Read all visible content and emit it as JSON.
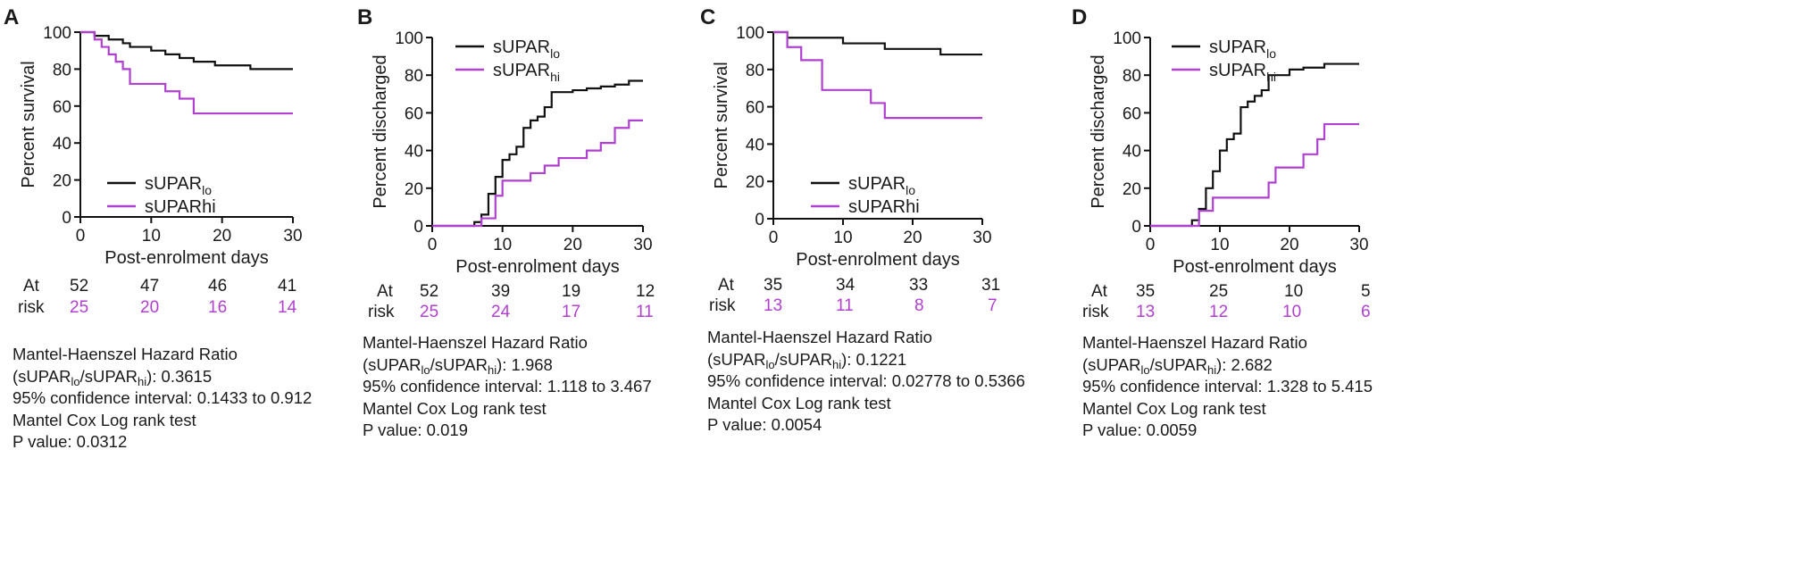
{
  "colors": {
    "lo": "#111111",
    "hi": "#b040cf"
  },
  "chart_data": [
    {
      "type": "line",
      "step": true,
      "panel": "A",
      "ylabel": "Percent survival",
      "xlabel": "Post-enrolment days",
      "xlim": [
        0,
        30
      ],
      "ylim": [
        0,
        100
      ],
      "xticks": [
        0,
        10,
        20,
        30
      ],
      "yticks": [
        0,
        20,
        40,
        60,
        80,
        100
      ],
      "legend": {
        "position": "bottom-center",
        "lo_base": "sUPAR",
        "lo_sub": "lo",
        "hi_base": "sUPARhi",
        "hi_sub": ""
      },
      "series": [
        {
          "name": "sUPARlo",
          "color_key": "lo",
          "x": [
            0,
            2,
            4,
            6,
            7,
            10,
            12,
            14,
            16,
            19,
            24,
            30
          ],
          "y": [
            100,
            98,
            96,
            94,
            92,
            90,
            88,
            86,
            84,
            82,
            80,
            80
          ]
        },
        {
          "name": "sUPARhi",
          "color_key": "hi",
          "x": [
            0,
            2,
            3,
            4,
            5,
            6,
            7,
            10,
            12,
            14,
            16,
            30
          ],
          "y": [
            100,
            96,
            92,
            88,
            84,
            80,
            72,
            72,
            68,
            64,
            56,
            56
          ]
        }
      ],
      "at_risk": {
        "label_line1": "At",
        "label_line2": "risk",
        "ticks": [
          0,
          10,
          20,
          30
        ],
        "lo": [
          "52",
          "47",
          "46",
          "41"
        ],
        "hi": [
          "25",
          "20",
          "16",
          "14"
        ]
      },
      "stats": {
        "line1": "Mantel-Haenszel Hazard Ratio",
        "ratio_open": "(sUPAR",
        "ratio_sub1": "lo",
        "ratio_mid": "/sUPAR",
        "ratio_sub2": "hi",
        "ratio_close": "): 0.3615",
        "ci": "95% confidence interval: 0.1433 to 0.912",
        "test": "Mantel Cox Log rank test",
        "p": "P value: 0.0312"
      }
    },
    {
      "type": "line",
      "step": true,
      "panel": "B",
      "ylabel": "Percent discharged",
      "xlabel": "Post-enrolment days",
      "xlim": [
        0,
        30
      ],
      "ylim": [
        0,
        100
      ],
      "xticks": [
        0,
        10,
        20,
        30
      ],
      "yticks": [
        0,
        20,
        40,
        60,
        80,
        100
      ],
      "legend": {
        "position": "top-left",
        "lo_base": "sUPAR",
        "lo_sub": "lo",
        "hi_base": "sUPAR",
        "hi_sub": "hi"
      },
      "series": [
        {
          "name": "sUPARlo",
          "color_key": "lo",
          "x": [
            0,
            6,
            7,
            8,
            9,
            10,
            11,
            12,
            13,
            14,
            15,
            16,
            17,
            20,
            22,
            24,
            26,
            28,
            30
          ],
          "y": [
            0,
            2,
            6,
            17,
            26,
            35,
            38,
            42,
            52,
            56,
            58,
            63,
            71,
            72,
            73,
            74,
            75,
            77,
            77
          ]
        },
        {
          "name": "sUPARhi",
          "color_key": "hi",
          "x": [
            0,
            7,
            9,
            10,
            11,
            14,
            16,
            18,
            22,
            24,
            26,
            28,
            30
          ],
          "y": [
            0,
            4,
            16,
            24,
            24,
            28,
            32,
            36,
            40,
            44,
            52,
            56,
            56
          ]
        }
      ],
      "at_risk": {
        "label_line1": "At",
        "label_line2": "risk",
        "ticks": [
          0,
          10,
          20,
          30
        ],
        "lo": [
          "52",
          "39",
          "19",
          "12"
        ],
        "hi": [
          "25",
          "24",
          "17",
          "11"
        ]
      },
      "stats": {
        "line1": "Mantel-Haenszel Hazard Ratio",
        "ratio_open": "(sUPAR",
        "ratio_sub1": "lo",
        "ratio_mid": "/sUPAR",
        "ratio_sub2": "hi",
        "ratio_close": "): 1.968",
        "ci": "95% confidence interval: 1.118 to 3.467",
        "test": "Mantel Cox Log rank test",
        "p": "P value: 0.019"
      }
    },
    {
      "type": "line",
      "step": true,
      "panel": "C",
      "ylabel": "Percent survival",
      "xlabel": "Post-enrolment days",
      "xlim": [
        0,
        30
      ],
      "ylim": [
        0,
        100
      ],
      "xticks": [
        0,
        10,
        20,
        30
      ],
      "yticks": [
        0,
        20,
        40,
        60,
        80,
        100
      ],
      "legend": {
        "position": "bottom-center",
        "lo_base": "sUPAR",
        "lo_sub": "lo",
        "hi_base": "sUPARhi",
        "hi_sub": ""
      },
      "series": [
        {
          "name": "sUPARlo",
          "color_key": "lo",
          "x": [
            0,
            2,
            10,
            16,
            24,
            30
          ],
          "y": [
            100,
            97,
            94,
            91,
            88,
            88
          ]
        },
        {
          "name": "sUPARhi",
          "color_key": "hi",
          "x": [
            0,
            2,
            4,
            7,
            14,
            16,
            30
          ],
          "y": [
            100,
            92,
            85,
            69,
            62,
            54,
            54
          ]
        }
      ],
      "at_risk": {
        "label_line1": "At",
        "label_line2": "risk",
        "ticks": [
          0,
          10,
          20,
          30
        ],
        "lo": [
          "35",
          "34",
          "33",
          "31"
        ],
        "hi": [
          "13",
          "11",
          "8",
          "7"
        ]
      },
      "stats": {
        "line1": "Mantel-Haenszel Hazard Ratio",
        "ratio_open": "(sUPAR",
        "ratio_sub1": "lo",
        "ratio_mid": "/sUPAR",
        "ratio_sub2": "hi",
        "ratio_close": "): 0.1221",
        "ci": "95% confidence interval: 0.02778 to 0.5366",
        "test": "Mantel Cox Log rank test",
        "p": "P value: 0.0054"
      }
    },
    {
      "type": "line",
      "step": true,
      "panel": "D",
      "ylabel": "Percent discharged",
      "xlabel": "Post-enrolment days",
      "xlim": [
        0,
        30
      ],
      "ylim": [
        0,
        100
      ],
      "xticks": [
        0,
        10,
        20,
        30
      ],
      "yticks": [
        0,
        20,
        40,
        60,
        80,
        100
      ],
      "legend": {
        "position": "top-left",
        "lo_base": "sUPAR",
        "lo_sub": "lo",
        "hi_base": "sUPAR",
        "hi_sub": "hi"
      },
      "series": [
        {
          "name": "sUPARlo",
          "color_key": "lo",
          "x": [
            0,
            6,
            7,
            8,
            9,
            10,
            11,
            12,
            13,
            14,
            15,
            16,
            17,
            20,
            22,
            25,
            30
          ],
          "y": [
            0,
            3,
            9,
            20,
            29,
            40,
            46,
            49,
            63,
            66,
            69,
            72,
            80,
            83,
            84,
            86,
            86
          ]
        },
        {
          "name": "sUPARhi",
          "color_key": "hi",
          "x": [
            0,
            7,
            9,
            17,
            18,
            22,
            24,
            25,
            30
          ],
          "y": [
            0,
            8,
            15,
            23,
            31,
            38,
            46,
            54,
            54
          ]
        }
      ],
      "at_risk": {
        "label_line1": "At",
        "label_line2": "risk",
        "ticks": [
          0,
          10,
          20,
          30
        ],
        "lo": [
          "35",
          "25",
          "10",
          "5"
        ],
        "hi": [
          "13",
          "12",
          "10",
          "6"
        ]
      },
      "stats": {
        "line1": "Mantel-Haenszel Hazard Ratio",
        "ratio_open": "(sUPAR",
        "ratio_sub1": "lo",
        "ratio_mid": "/sUPAR",
        "ratio_sub2": "hi",
        "ratio_close": "): 2.682",
        "ci": "95% confidence interval: 1.328 to 5.415",
        "test": "Mantel Cox Log rank test",
        "p": "P value: 0.0059"
      }
    }
  ]
}
